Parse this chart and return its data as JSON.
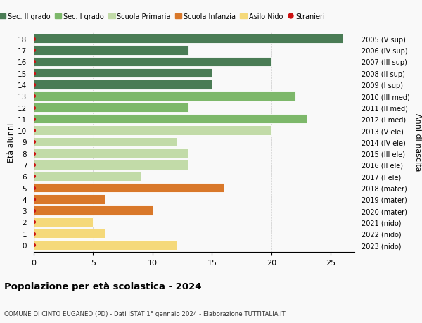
{
  "ages": [
    18,
    17,
    16,
    15,
    14,
    13,
    12,
    11,
    10,
    9,
    8,
    7,
    6,
    5,
    4,
    3,
    2,
    1,
    0
  ],
  "years": [
    "2005 (V sup)",
    "2006 (IV sup)",
    "2007 (III sup)",
    "2008 (II sup)",
    "2009 (I sup)",
    "2010 (III med)",
    "2011 (II med)",
    "2012 (I med)",
    "2013 (V ele)",
    "2014 (IV ele)",
    "2015 (III ele)",
    "2016 (II ele)",
    "2017 (I ele)",
    "2018 (mater)",
    "2019 (mater)",
    "2020 (mater)",
    "2021 (nido)",
    "2022 (nido)",
    "2023 (nido)"
  ],
  "values": [
    26,
    13,
    20,
    15,
    15,
    22,
    13,
    23,
    20,
    12,
    13,
    13,
    9,
    16,
    6,
    10,
    5,
    6,
    12
  ],
  "stranieri_values": [
    0,
    1,
    0,
    2,
    1,
    1,
    1,
    1,
    2,
    1,
    1,
    1,
    1,
    1,
    1,
    1,
    1,
    1,
    1
  ],
  "bar_colors": [
    "#4a7c55",
    "#4a7c55",
    "#4a7c55",
    "#4a7c55",
    "#4a7c55",
    "#7db86a",
    "#7db86a",
    "#7db86a",
    "#c2dba8",
    "#c2dba8",
    "#c2dba8",
    "#c2dba8",
    "#c2dba8",
    "#d9782a",
    "#d9782a",
    "#d9782a",
    "#f5d97a",
    "#f5d97a",
    "#f5d97a"
  ],
  "stranieri_color": "#cc1111",
  "legend_items": [
    {
      "label": "Sec. II grado",
      "color": "#4a7c55"
    },
    {
      "label": "Sec. I grado",
      "color": "#7db86a"
    },
    {
      "label": "Scuola Primaria",
      "color": "#c2dba8"
    },
    {
      "label": "Scuola Infanzia",
      "color": "#d9782a"
    },
    {
      "label": "Asilo Nido",
      "color": "#f5d97a"
    },
    {
      "label": "Stranieri",
      "color": "#cc1111"
    }
  ],
  "ylabel_left": "Età alunni",
  "ylabel_right": "Anni di nascita",
  "title": "Popolazione per età scolastica - 2024",
  "subtitle": "COMUNE DI CINTO EUGANEO (PD) - Dati ISTAT 1° gennaio 2024 - Elaborazione TUTTITALIA.IT",
  "xlim": [
    0,
    27
  ],
  "xticks": [
    0,
    5,
    10,
    15,
    20,
    25
  ],
  "bg_color": "#f9f9f9",
  "bar_height": 0.82
}
